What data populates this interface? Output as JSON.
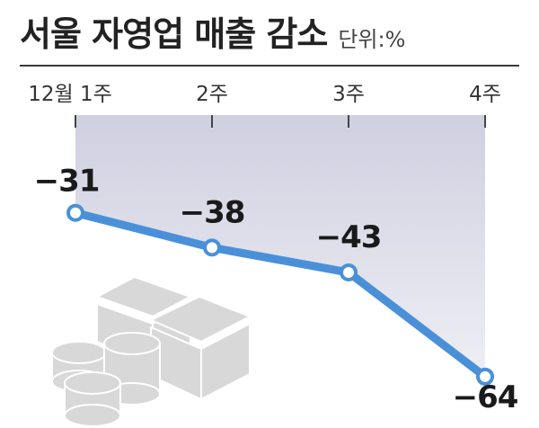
{
  "chart_data": {
    "type": "line",
    "title": "서울 자영업 매출 감소",
    "unit_label": "단위:%",
    "categories": [
      "12월 1주",
      "2주",
      "3주",
      "4주"
    ],
    "series": [
      {
        "values": [
          -31,
          -38,
          -43,
          -64
        ]
      }
    ],
    "data_labels": [
      "−31",
      "−38",
      "−43",
      "−64"
    ],
    "ylim": [
      -70,
      -20
    ],
    "grid": false,
    "colors": {
      "line": "#4a90d9",
      "marker_fill": "#ffffff",
      "area": "#dcdcea",
      "illustration": "#d6d6d6"
    }
  }
}
